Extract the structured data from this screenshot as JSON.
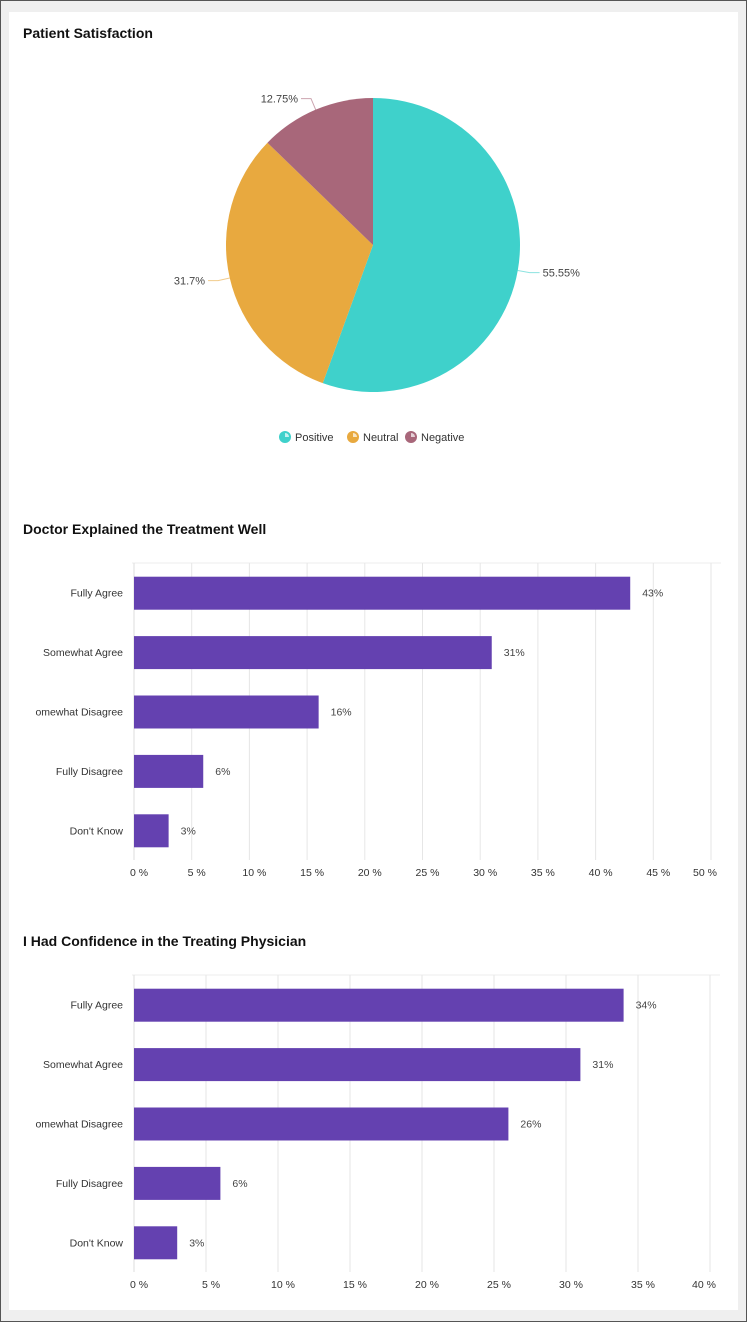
{
  "chart_data": [
    {
      "type": "pie",
      "title": "Patient Satisfaction",
      "categories": [
        "Positive",
        "Neutral",
        "Negative"
      ],
      "values": [
        55.55,
        31.7,
        12.75
      ],
      "labels": [
        "55.55%",
        "31.7%",
        "12.75%"
      ],
      "colors": [
        "#3fd1cb",
        "#e8a93f",
        "#a8677a"
      ],
      "legend": "bottom"
    },
    {
      "type": "bar",
      "orientation": "horizontal",
      "title": "Doctor Explained the Treatment Well",
      "categories": [
        "Fully Agree",
        "Somewhat Agree",
        "omewhat Disagree",
        "Fully Disagree",
        "Don't Know"
      ],
      "values": [
        43,
        31,
        16,
        6,
        3
      ],
      "labels": [
        "43%",
        "31%",
        "16%",
        "6%",
        "3%"
      ],
      "xlim": [
        0,
        50
      ],
      "ticks": [
        "0 %",
        "5 %",
        "10 %",
        "15 %",
        "20 %",
        "25 %",
        "30 %",
        "35 %",
        "40 %",
        "45 %",
        "50 %"
      ],
      "color": "#6441b0",
      "grid": true
    },
    {
      "type": "bar",
      "orientation": "horizontal",
      "title": "I Had Confidence in the Treating Physician",
      "categories": [
        "Fully Agree",
        "Somewhat Agree",
        "omewhat Disagree",
        "Fully Disagree",
        "Don't Know"
      ],
      "values": [
        34,
        31,
        26,
        6,
        3
      ],
      "labels": [
        "34%",
        "31%",
        "26%",
        "6%",
        "3%"
      ],
      "xlim": [
        0,
        40
      ],
      "ticks": [
        "0 %",
        "5 %",
        "10 %",
        "15 %",
        "20 %",
        "25 %",
        "30 %",
        "35 %",
        "40 %"
      ],
      "color": "#6441b0",
      "grid": true
    }
  ]
}
